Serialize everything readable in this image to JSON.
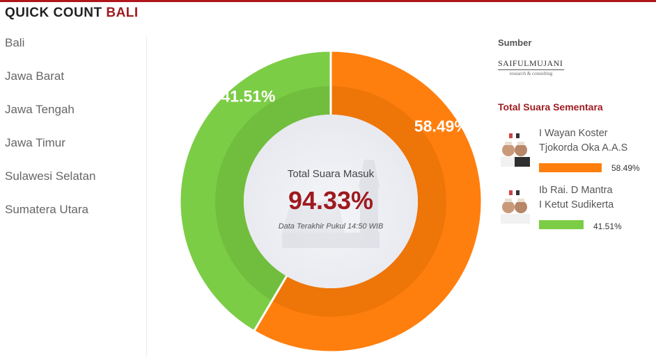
{
  "header": {
    "title_prefix": "QUICK COUNT",
    "title_region": "BALI"
  },
  "sidebar": {
    "items": [
      {
        "label": "Bali",
        "active": true
      },
      {
        "label": "Jawa Barat",
        "active": false
      },
      {
        "label": "Jawa Tengah",
        "active": false
      },
      {
        "label": "Jawa Timur",
        "active": false
      },
      {
        "label": "Sulawesi Selatan",
        "active": false
      },
      {
        "label": "Sumatera Utara",
        "active": false
      }
    ]
  },
  "center": {
    "label": "Total Suara Masuk",
    "value": "94.33%",
    "timestamp": "Data Terakhir Pukul 14:50 WIB"
  },
  "chart_data": {
    "type": "pie",
    "categories": [
      "I Wayan Koster / Tjokorda Oka A.A.S",
      "Ib Rai. D Mantra / I Ketut Sudikerta"
    ],
    "values": [
      58.49,
      41.51
    ],
    "labels": [
      "58.49%",
      "41.51%"
    ],
    "colors": [
      "#ff7f0e",
      "#7ccd46"
    ],
    "inner_colors": [
      "#ee7508",
      "#71be3e"
    ],
    "donut": true
  },
  "source": {
    "label": "Sumber",
    "logo_text": "SAIFULMUJANI",
    "logo_sub": "research & consulting"
  },
  "results": {
    "title": "Total Suara Sementara",
    "candidates": [
      {
        "name1": "I Wayan Koster",
        "name2": "Tjokorda Oka A.A.S",
        "percent": "58.49%",
        "value": 58.49,
        "color": "#ff7f0e"
      },
      {
        "name1": "Ib Rai. D Mantra",
        "name2": "I Ketut Sudikerta",
        "percent": "41.51%",
        "value": 41.51,
        "color": "#7ccd46"
      }
    ]
  }
}
